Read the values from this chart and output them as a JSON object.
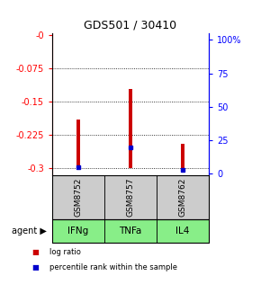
{
  "title": "GDS501 / 30410",
  "samples": [
    "GSM8752",
    "GSM8757",
    "GSM8762"
  ],
  "agents": [
    "IFNg",
    "TNFa",
    "IL4"
  ],
  "log_ratios": [
    -0.19,
    -0.12,
    -0.245
  ],
  "log_ratio_bottoms": [
    -0.3,
    -0.3,
    -0.3
  ],
  "percentile_ranks": [
    5.0,
    20.0,
    3.0
  ],
  "ylim_left": [
    -0.315,
    0.005
  ],
  "ylim_right": [
    -1.05,
    105
  ],
  "yticks_left": [
    0,
    -0.075,
    -0.15,
    -0.225,
    -0.3
  ],
  "ytick_labels_left": [
    "-0",
    "-0.075",
    "-0.15",
    "-0.225",
    "-0.3"
  ],
  "yticks_right": [
    0,
    25,
    50,
    75,
    100
  ],
  "ytick_labels_right": [
    "0",
    "25",
    "50",
    "75",
    "100%"
  ],
  "bar_color": "#cc0000",
  "blue_color": "#0000cc",
  "agent_bg_color": "#88ee88",
  "sample_bg_color": "#cccccc",
  "legend_red_label": "log ratio",
  "legend_blue_label": "percentile rank within the sample",
  "bar_width": 0.06,
  "agent_label": "agent"
}
